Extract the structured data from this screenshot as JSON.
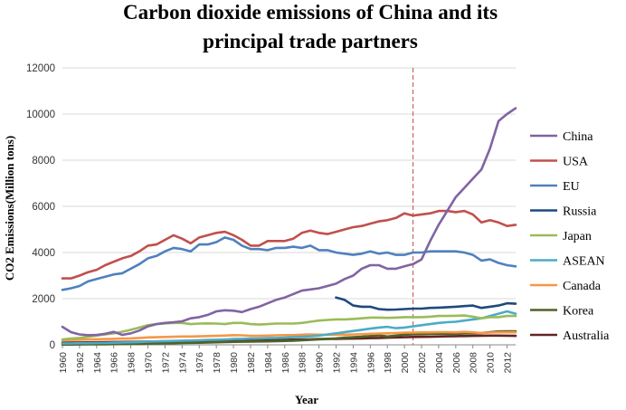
{
  "chart_data": {
    "type": "line",
    "title_lines": [
      "Carbon dioxide emissions of China and its",
      "principal trade partners"
    ],
    "xlabel": "Year",
    "ylabel": "CO2 Emissions(Million tons)",
    "xlim": [
      1960,
      2013
    ],
    "ylim": [
      0,
      12000
    ],
    "yticks": [
      0,
      2000,
      4000,
      6000,
      8000,
      10000,
      12000
    ],
    "ytick_labels": [
      "0",
      "2000",
      "4000",
      "6000",
      "8000",
      "10000",
      "12000"
    ],
    "xticks": [
      1960,
      1962,
      1964,
      1966,
      1968,
      1970,
      1972,
      1974,
      1976,
      1978,
      1980,
      1982,
      1984,
      1986,
      1988,
      1990,
      1992,
      1994,
      1996,
      1998,
      2000,
      2002,
      2004,
      2006,
      2008,
      2010,
      2012
    ],
    "xtick_labels": [
      "1960",
      "1962",
      "1964",
      "1966",
      "1968",
      "1970",
      "1972",
      "1974",
      "1976",
      "1978",
      "1980",
      "1982",
      "1984",
      "1986",
      "1988",
      "1990",
      "1992",
      "1994",
      "1996",
      "1998",
      "2000",
      "2002",
      "2004",
      "2006",
      "2008",
      "2010",
      "2012"
    ],
    "grid": "horizontal",
    "legend_position": "right",
    "reference_line": {
      "x": 2001,
      "color": "#C0504D",
      "style": "dashed"
    },
    "x_start": 1960,
    "series": [
      {
        "name": "China",
        "color": "#8064A2",
        "start": 1960,
        "values": [
          780,
          550,
          450,
          420,
          430,
          480,
          560,
          430,
          500,
          620,
          800,
          900,
          950,
          980,
          1020,
          1150,
          1200,
          1300,
          1450,
          1500,
          1480,
          1420,
          1550,
          1650,
          1800,
          1950,
          2050,
          2200,
          2350,
          2400,
          2450,
          2550,
          2650,
          2850,
          3000,
          3300,
          3450,
          3450,
          3300,
          3300,
          3400,
          3500,
          3700,
          4500,
          5200,
          5800,
          6400,
          6800,
          7200,
          7600,
          8500,
          9700,
          10000,
          10250
        ]
      },
      {
        "name": "USA",
        "color": "#C0504D",
        "start": 1960,
        "values": [
          2880,
          2880,
          3000,
          3150,
          3250,
          3450,
          3600,
          3750,
          3850,
          4050,
          4300,
          4350,
          4550,
          4750,
          4600,
          4400,
          4650,
          4750,
          4850,
          4900,
          4750,
          4550,
          4300,
          4300,
          4500,
          4500,
          4500,
          4600,
          4850,
          4950,
          4850,
          4800,
          4900,
          5000,
          5100,
          5150,
          5250,
          5350,
          5400,
          5500,
          5700,
          5600,
          5650,
          5700,
          5800,
          5800,
          5750,
          5800,
          5650,
          5300,
          5400,
          5300,
          5150,
          5200
        ]
      },
      {
        "name": "EU",
        "color": "#4F81BD",
        "start": 1960,
        "values": [
          2380,
          2450,
          2550,
          2750,
          2850,
          2950,
          3050,
          3100,
          3300,
          3500,
          3750,
          3850,
          4050,
          4200,
          4150,
          4050,
          4350,
          4350,
          4450,
          4650,
          4550,
          4300,
          4150,
          4150,
          4100,
          4200,
          4200,
          4250,
          4200,
          4300,
          4100,
          4100,
          4000,
          3950,
          3900,
          3950,
          4050,
          3950,
          4000,
          3900,
          3900,
          4000,
          4000,
          4050,
          4050,
          4050,
          4050,
          4000,
          3900,
          3650,
          3700,
          3550,
          3450,
          3400
        ]
      },
      {
        "name": "Russia",
        "color": "#1F497D",
        "start": 1992,
        "values": [
          2050,
          1950,
          1700,
          1650,
          1650,
          1550,
          1520,
          1530,
          1550,
          1570,
          1570,
          1600,
          1610,
          1630,
          1650,
          1680,
          1700,
          1600,
          1650,
          1700,
          1800,
          1780
        ]
      },
      {
        "name": "Japan",
        "color": "#9BBB59",
        "start": 1960,
        "values": [
          230,
          270,
          300,
          350,
          400,
          450,
          500,
          570,
          650,
          750,
          850,
          900,
          930,
          950,
          950,
          900,
          920,
          930,
          920,
          900,
          950,
          950,
          900,
          880,
          900,
          920,
          920,
          920,
          950,
          1000,
          1050,
          1080,
          1100,
          1100,
          1120,
          1150,
          1180,
          1180,
          1170,
          1180,
          1200,
          1200,
          1200,
          1220,
          1250,
          1250,
          1260,
          1270,
          1220,
          1150,
          1200,
          1200,
          1250,
          1250
        ]
      },
      {
        "name": "ASEAN",
        "color": "#4BACC6",
        "start": 1960,
        "values": [
          60,
          60,
          70,
          70,
          80,
          80,
          90,
          100,
          110,
          120,
          140,
          150,
          160,
          170,
          180,
          190,
          200,
          210,
          220,
          230,
          250,
          260,
          270,
          280,
          290,
          300,
          310,
          330,
          350,
          370,
          400,
          450,
          500,
          550,
          600,
          650,
          700,
          750,
          780,
          720,
          750,
          800,
          850,
          900,
          950,
          980,
          1000,
          1050,
          1100,
          1150,
          1250,
          1350,
          1450,
          1350
        ]
      },
      {
        "name": "Canada",
        "color": "#F79646",
        "start": 1960,
        "values": [
          200,
          210,
          220,
          230,
          240,
          250,
          260,
          270,
          280,
          300,
          320,
          330,
          340,
          350,
          360,
          360,
          370,
          380,
          390,
          400,
          420,
          410,
          390,
          390,
          400,
          410,
          420,
          420,
          440,
          450,
          440,
          430,
          440,
          440,
          450,
          460,
          480,
          490,
          500,
          510,
          530,
          530,
          540,
          540,
          550,
          550,
          540,
          560,
          540,
          510,
          530,
          540,
          540,
          540
        ]
      },
      {
        "name": "Korea",
        "color": "#4F6228",
        "start": 1960,
        "values": [
          10,
          12,
          15,
          18,
          20,
          25,
          30,
          35,
          40,
          45,
          55,
          60,
          65,
          70,
          80,
          85,
          90,
          100,
          110,
          120,
          130,
          135,
          140,
          145,
          150,
          160,
          170,
          180,
          200,
          220,
          240,
          260,
          280,
          310,
          330,
          350,
          380,
          410,
          360,
          400,
          440,
          450,
          460,
          470,
          480,
          480,
          480,
          490,
          500,
          510,
          550,
          580,
          590,
          590
        ]
      },
      {
        "name": "Australia",
        "color": "#632423",
        "start": 1960,
        "values": [
          90,
          95,
          100,
          105,
          110,
          115,
          120,
          125,
          130,
          135,
          140,
          145,
          150,
          155,
          160,
          165,
          170,
          175,
          180,
          185,
          190,
          195,
          200,
          205,
          210,
          215,
          220,
          225,
          230,
          240,
          250,
          255,
          260,
          265,
          270,
          280,
          290,
          300,
          310,
          320,
          330,
          340,
          345,
          350,
          360,
          370,
          375,
          380,
          390,
          395,
          400,
          400,
          395,
          390
        ]
      }
    ]
  }
}
